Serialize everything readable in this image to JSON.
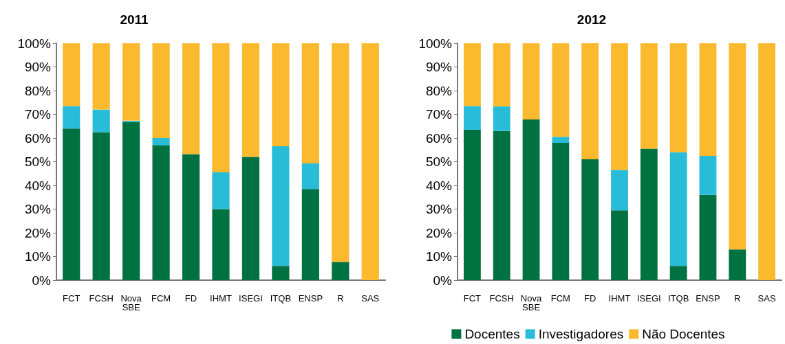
{
  "chart_data": [
    {
      "type": "bar",
      "title": "2011",
      "stacked": true,
      "categories": [
        "FCT",
        "FCSH",
        "Nova SBE",
        "FCM",
        "FD",
        "IHMT",
        "ISEGI",
        "ITQB",
        "ENSP",
        "R",
        "SAS"
      ],
      "series": [
        {
          "color": "#007140",
          "values": [
            64,
            62.5,
            66.7,
            57,
            53.2,
            30,
            52,
            6,
            38.5,
            7.7,
            0
          ]
        },
        {
          "color": "#29bcd8",
          "values": [
            9.5,
            9.5,
            0.6,
            3,
            0,
            15.5,
            0,
            50.5,
            10.8,
            0,
            0
          ]
        },
        {
          "color": "#fbb92e",
          "values": [
            26.5,
            28,
            32.7,
            40,
            46.8,
            54.5,
            48,
            43.5,
            50.7,
            92.3,
            100
          ]
        }
      ],
      "ylim": [
        0,
        100
      ],
      "yticks": [
        {
          "value": 0,
          "label": "0%"
        },
        {
          "value": 10,
          "label": "10%"
        },
        {
          "value": 20,
          "label": "20%"
        },
        {
          "value": 30,
          "label": "30%"
        },
        {
          "value": 40,
          "label": "40%"
        },
        {
          "value": 50,
          "label": "50%"
        },
        {
          "value": 60,
          "label": "60%"
        },
        {
          "value": 70,
          "label": "70%"
        },
        {
          "value": 80,
          "label": "80%"
        },
        {
          "value": 90,
          "label": "90%"
        },
        {
          "value": 100,
          "label": "100%"
        }
      ],
      "grid": false,
      "legend": false
    },
    {
      "type": "bar",
      "title": "2012",
      "stacked": true,
      "categories": [
        "FCT",
        "FCSH",
        "Nova SBE",
        "FCM",
        "FD",
        "IHMT",
        "ISEGI",
        "ITQB",
        "ENSP",
        "R",
        "SAS"
      ],
      "series": [
        {
          "name": "Docentes",
          "color": "#007140",
          "values": [
            63.5,
            63,
            67.8,
            58,
            51,
            29.5,
            55.5,
            6,
            36,
            13,
            0
          ]
        },
        {
          "name": "Investigadores",
          "color": "#29bcd8",
          "values": [
            10,
            10.3,
            0,
            2.5,
            0,
            17,
            0,
            48,
            16.5,
            0,
            0
          ]
        },
        {
          "name": "Não Docentes",
          "color": "#fbb92e",
          "values": [
            26.5,
            26.7,
            32.2,
            39.5,
            49,
            53.5,
            44.5,
            46,
            47.5,
            87,
            100
          ]
        }
      ],
      "ylim": [
        0,
        100
      ],
      "yticks": [
        {
          "value": 0,
          "label": "0%"
        },
        {
          "value": 10,
          "label": "10%"
        },
        {
          "value": 20,
          "label": "20%"
        },
        {
          "value": 30,
          "label": "30%"
        },
        {
          "value": 40,
          "label": "40%"
        },
        {
          "value": 50,
          "label": "50%"
        },
        {
          "value": 60,
          "label": "60%"
        },
        {
          "value": 70,
          "label": "70%"
        },
        {
          "value": 80,
          "label": "80%"
        },
        {
          "value": 90,
          "label": "90%"
        },
        {
          "value": 100,
          "label": "100%"
        }
      ],
      "grid": false,
      "legend": "bottom"
    }
  ]
}
